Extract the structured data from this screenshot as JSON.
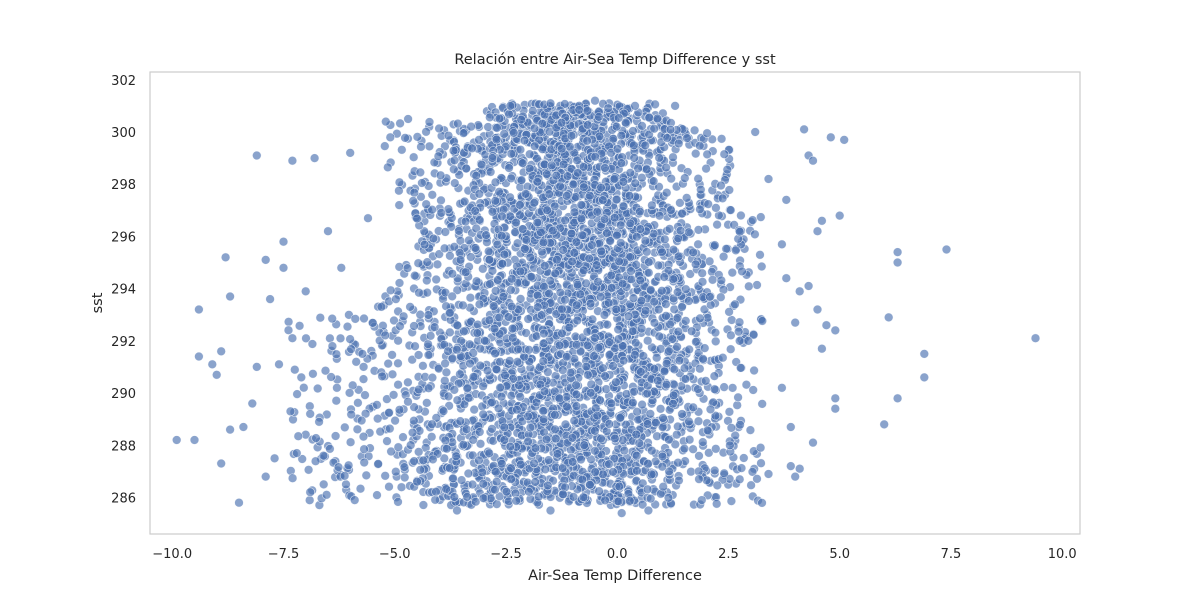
{
  "chart_data": {
    "type": "scatter",
    "title": "Relación entre Air-Sea Temp Difference y sst",
    "xlabel": "Air-Sea Temp Difference",
    "ylabel": "sst",
    "xlim": [
      -10.5,
      10.4
    ],
    "ylim": [
      284.6,
      302.3
    ],
    "xticks": [
      -10.0,
      -7.5,
      -5.0,
      -2.5,
      0.0,
      2.5,
      5.0,
      7.5,
      10.0
    ],
    "xtick_labels": [
      "−10.0",
      "−7.5",
      "−5.0",
      "−2.5",
      "0.0",
      "2.5",
      "5.0",
      "7.5",
      "10.0"
    ],
    "yticks": [
      286,
      288,
      290,
      292,
      294,
      296,
      298,
      300,
      302
    ],
    "ytick_labels": [
      "286",
      "288",
      "290",
      "292",
      "294",
      "296",
      "298",
      "300",
      "302"
    ],
    "grid": false,
    "legend": "none",
    "marker_color": "#4c72b0",
    "marker_edge": "#ffffff",
    "marker_alpha": 0.65,
    "series": [
      {
        "points": [
          [
            -9.9,
            288.2
          ],
          [
            -9.5,
            288.2
          ],
          [
            -9.4,
            293.2
          ],
          [
            -9.4,
            291.4
          ],
          [
            -9.1,
            291.1
          ],
          [
            -9.0,
            290.7
          ],
          [
            -8.9,
            291.6
          ],
          [
            -8.9,
            287.3
          ],
          [
            -8.8,
            295.2
          ],
          [
            -8.7,
            293.7
          ],
          [
            -8.7,
            288.6
          ],
          [
            -8.5,
            285.8
          ],
          [
            -8.4,
            288.7
          ],
          [
            -8.2,
            289.6
          ],
          [
            -8.1,
            291.0
          ],
          [
            -7.9,
            286.8
          ],
          [
            -7.9,
            295.1
          ],
          [
            -7.8,
            293.6
          ],
          [
            -7.7,
            287.5
          ],
          [
            -7.6,
            291.1
          ],
          [
            -7.5,
            294.8
          ],
          [
            -7.5,
            295.8
          ],
          [
            -7.3,
            292.1
          ],
          [
            -7.2,
            287.7
          ],
          [
            -7.1,
            290.6
          ],
          [
            -7.0,
            293.9
          ],
          [
            -6.9,
            289.2
          ],
          [
            -6.9,
            286.2
          ],
          [
            -6.7,
            288.9
          ],
          [
            -6.5,
            296.2
          ],
          [
            -6.4,
            291.8
          ],
          [
            -6.2,
            294.8
          ],
          [
            -6.0,
            299.2
          ],
          [
            -5.9,
            285.9
          ],
          [
            -6.3,
            290.2
          ],
          [
            -6.6,
            287.6
          ],
          [
            -8.1,
            299.1
          ],
          [
            -7.3,
            298.9
          ],
          [
            -6.8,
            299.0
          ],
          [
            -5.6,
            296.7
          ],
          [
            -5.2,
            300.4
          ],
          [
            -5.1,
            299.8
          ],
          [
            -4.7,
            300.5
          ],
          [
            -4.9,
            297.2
          ],
          [
            -5.7,
            291.0
          ],
          [
            -5.3,
            293.3
          ],
          [
            3.1,
            300.0
          ],
          [
            3.4,
            298.2
          ],
          [
            3.8,
            297.4
          ],
          [
            3.7,
            295.7
          ],
          [
            3.8,
            294.4
          ],
          [
            4.0,
            292.7
          ],
          [
            3.7,
            290.2
          ],
          [
            3.9,
            288.7
          ],
          [
            4.1,
            287.1
          ],
          [
            4.3,
            299.1
          ],
          [
            4.4,
            298.9
          ],
          [
            4.5,
            296.2
          ],
          [
            4.6,
            296.6
          ],
          [
            4.5,
            293.2
          ],
          [
            4.7,
            292.6
          ],
          [
            4.6,
            291.7
          ],
          [
            4.9,
            289.8
          ],
          [
            4.4,
            288.1
          ],
          [
            4.8,
            299.8
          ],
          [
            5.0,
            296.8
          ],
          [
            5.1,
            299.7
          ],
          [
            4.9,
            292.4
          ],
          [
            4.9,
            289.4
          ],
          [
            3.9,
            287.2
          ],
          [
            3.4,
            286.9
          ],
          [
            4.0,
            286.8
          ],
          [
            4.2,
            300.1
          ],
          [
            4.3,
            294.1
          ],
          [
            4.1,
            293.9
          ],
          [
            6.1,
            292.9
          ],
          [
            6.3,
            295.4
          ],
          [
            6.3,
            295.0
          ],
          [
            6.0,
            288.8
          ],
          [
            6.3,
            289.8
          ],
          [
            6.9,
            291.5
          ],
          [
            6.9,
            290.6
          ],
          [
            7.4,
            295.5
          ],
          [
            9.4,
            292.1
          ],
          [
            -2.4,
            301.0
          ],
          [
            -1.5,
            301.1
          ],
          [
            -0.5,
            301.2
          ],
          [
            0.4,
            301.0
          ],
          [
            1.3,
            301.0
          ],
          [
            0.7,
            285.5
          ],
          [
            0.1,
            285.4
          ],
          [
            -1.5,
            285.5
          ],
          [
            -3.6,
            285.5
          ],
          [
            1.9,
            285.9
          ]
        ]
      }
    ]
  }
}
